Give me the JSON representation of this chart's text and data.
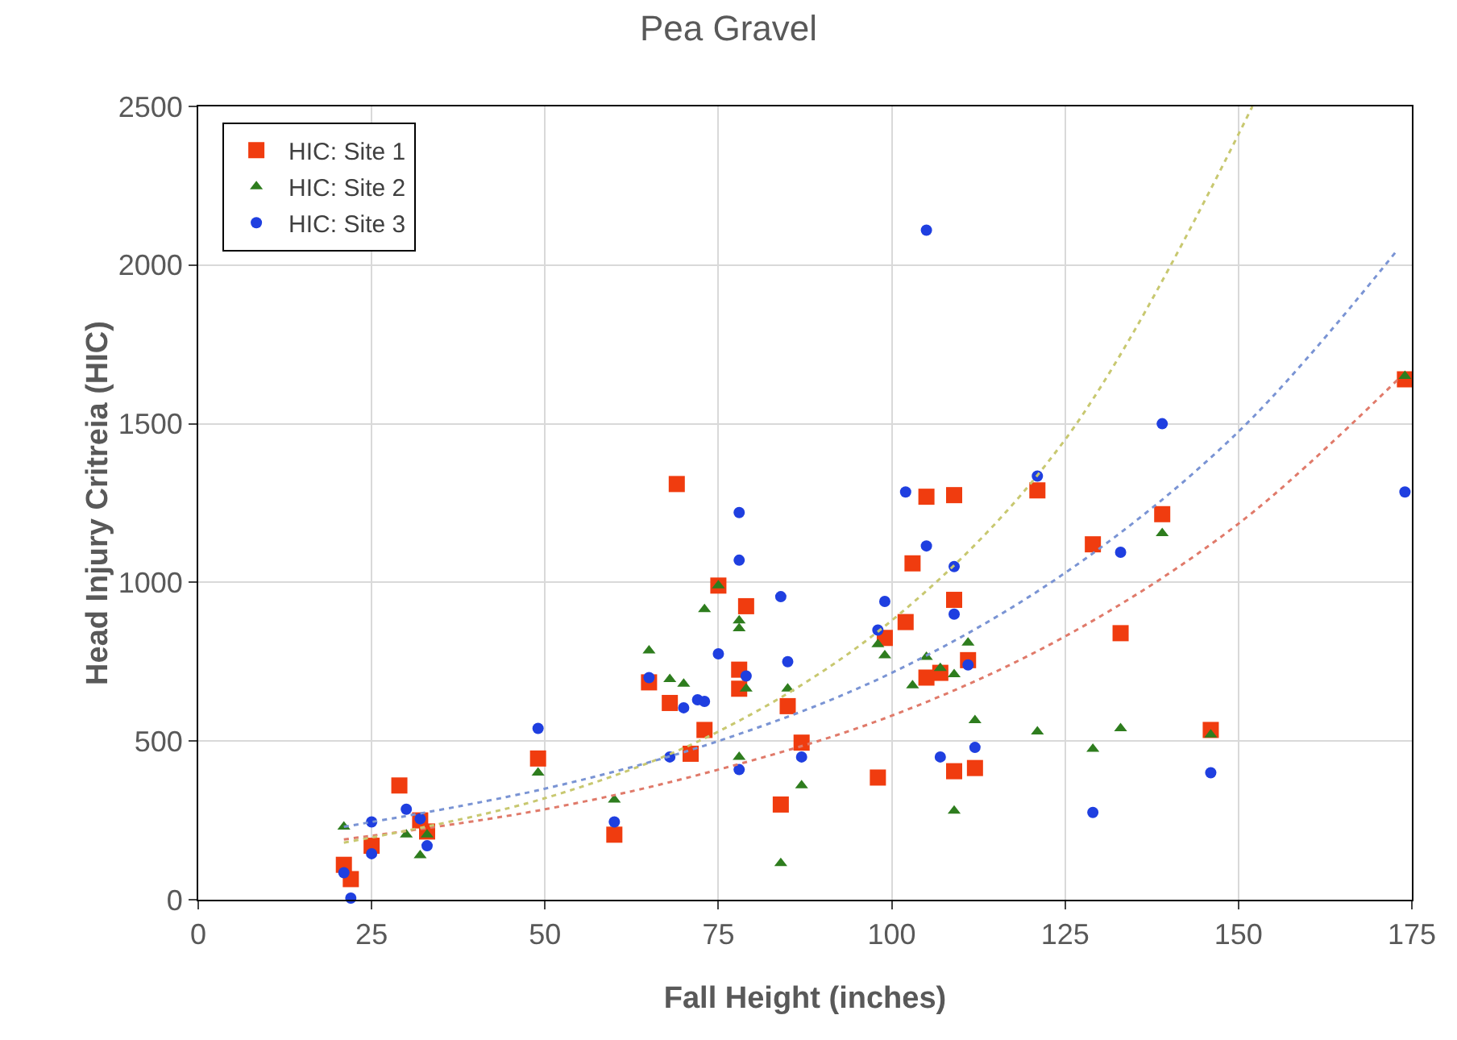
{
  "chart_data": {
    "type": "scatter",
    "title": "Pea Gravel",
    "xlabel": "Fall Height (inches)",
    "ylabel": "Head Injury Critreia (HIC)",
    "xlim": [
      0,
      175
    ],
    "xticks": [
      0,
      25,
      50,
      75,
      100,
      125,
      150,
      175
    ],
    "ylim": [
      0,
      2500
    ],
    "yticks": [
      0,
      500,
      1000,
      1500,
      2000,
      2500
    ],
    "grid": true,
    "legend": "top left",
    "series": [
      {
        "name": "HIC: Site 1",
        "color": "#f03c0f",
        "marker": "square",
        "x": [
          69,
          29,
          49,
          68,
          71,
          60,
          32,
          33,
          25,
          21,
          22,
          65,
          75,
          79,
          78,
          78,
          73,
          84,
          85,
          87,
          98,
          99,
          102,
          103,
          105,
          109,
          109,
          105,
          107,
          111,
          109,
          112,
          121,
          129,
          139,
          133,
          146,
          174
        ],
        "values": [
          1310,
          360,
          445,
          620,
          460,
          205,
          250,
          215,
          170,
          110,
          65,
          685,
          990,
          925,
          725,
          665,
          535,
          300,
          610,
          495,
          385,
          825,
          875,
          1060,
          1270,
          1275,
          945,
          700,
          715,
          755,
          405,
          415,
          1290,
          1120,
          1215,
          840,
          535,
          1640
        ]
      },
      {
        "name": "HIC: Site 2",
        "color": "#2e7d1e",
        "marker": "triangle",
        "x": [
          21,
          30,
          32,
          33,
          49,
          60,
          65,
          68,
          70,
          75,
          73,
          78,
          78,
          79,
          78,
          85,
          87,
          84,
          98,
          99,
          103,
          105,
          107,
          109,
          111,
          112,
          109,
          121,
          129,
          133,
          139,
          146,
          174
        ],
        "values": [
          230,
          205,
          140,
          205,
          400,
          315,
          785,
          695,
          680,
          990,
          915,
          880,
          855,
          665,
          450,
          665,
          360,
          115,
          805,
          770,
          675,
          765,
          730,
          710,
          810,
          565,
          280,
          530,
          475,
          540,
          1155,
          520,
          1650
        ]
      },
      {
        "name": "HIC: Site 3",
        "color": "#1f3fe0",
        "marker": "circle",
        "x": [
          21,
          22,
          25,
          25,
          30,
          32,
          33,
          49,
          60,
          65,
          68,
          70,
          72,
          73,
          105,
          78,
          78,
          84,
          75,
          85,
          79,
          78,
          87,
          102,
          105,
          109,
          99,
          98,
          109,
          111,
          107,
          112,
          121,
          139,
          133,
          129,
          146,
          174
        ],
        "values": [
          85,
          5,
          245,
          145,
          285,
          255,
          170,
          540,
          245,
          700,
          450,
          605,
          630,
          625,
          2110,
          1220,
          1070,
          955,
          775,
          750,
          705,
          410,
          450,
          1285,
          1115,
          1050,
          940,
          850,
          900,
          740,
          450,
          480,
          1335,
          1500,
          1095,
          275,
          400,
          1285
        ]
      },
      {
        "type": "line",
        "line_style": "dotted",
        "marker": "none",
        "color": "#e07a6a",
        "x": [
          21,
          50,
          75,
          100,
          125,
          150,
          173
        ],
        "values": [
          190,
          285,
          410,
          580,
          830,
          1185,
          1640
        ]
      },
      {
        "type": "line",
        "line_style": "dotted",
        "marker": "none",
        "color": "#c8c870",
        "x": [
          21,
          50,
          75,
          100,
          125,
          152
        ],
        "values": [
          180,
          320,
          530,
          880,
          1450,
          2500
        ]
      },
      {
        "type": "line",
        "line_style": "dotted",
        "marker": "none",
        "color": "#7a94d4",
        "x": [
          21,
          50,
          75,
          100,
          125,
          150,
          173
        ],
        "values": [
          230,
          350,
          500,
          715,
          1030,
          1475,
          2050
        ]
      }
    ]
  }
}
